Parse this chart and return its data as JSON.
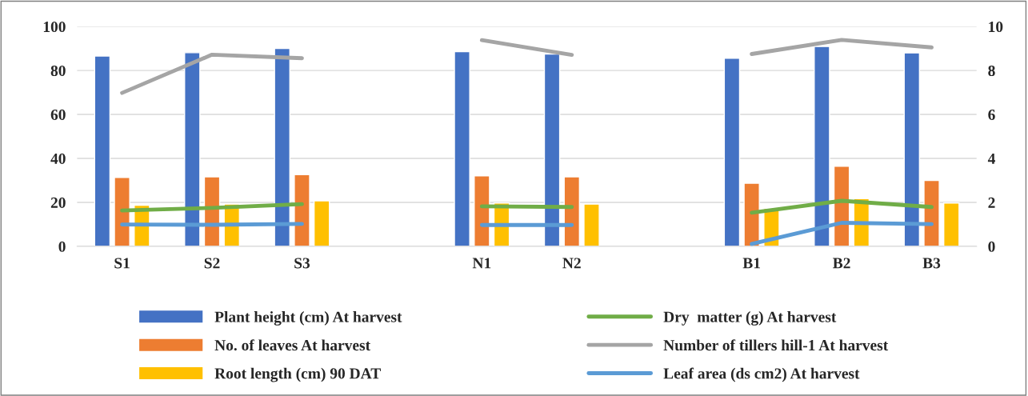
{
  "chart_data": {
    "type": "bar",
    "categories": [
      "S1",
      "S2",
      "S3",
      null,
      "N1",
      "N2",
      null,
      "B1",
      "B2",
      "B3"
    ],
    "series": [
      {
        "name": "Plant height (cm) At harvest",
        "color": "#4472c4",
        "values": [
          86.6,
          88.1,
          90.0,
          null,
          88.6,
          87.5,
          null,
          85.6,
          90.9,
          88.0
        ]
      },
      {
        "name": "No. of leaves At harvest",
        "color": "#ed7d31",
        "values": [
          31.3,
          31.6,
          32.6,
          null,
          32.1,
          31.6,
          null,
          28.7,
          36.4,
          30.0
        ]
      },
      {
        "name": "Root length (cm) 90 DAT",
        "color": "#ffc000",
        "values": [
          18.7,
          19.2,
          20.7,
          null,
          19.7,
          19.2,
          null,
          17.3,
          21.7,
          19.7
        ]
      },
      {
        "name": "Dry  matter (g) At harvest",
        "color": "#70ad47",
        "type": "line",
        "axis": "y2",
        "values": [
          1.63,
          1.75,
          1.92,
          null,
          1.82,
          1.79,
          null,
          1.53,
          2.07,
          1.79
        ]
      },
      {
        "name": "Number of tillers hill-1 At harvest",
        "color": "#a5a5a5",
        "type": "line",
        "axis": "y2",
        "values": [
          6.98,
          8.72,
          8.56,
          null,
          9.38,
          8.71,
          null,
          8.75,
          9.39,
          9.05
        ]
      },
      {
        "name": "Leaf area (ds cm2) At harvest",
        "color": "#5b9bd5",
        "type": "line",
        "axis": "y2",
        "values": [
          0.99,
          0.98,
          1.02,
          null,
          0.97,
          0.97,
          null,
          0.11,
          1.07,
          1.01
        ]
      }
    ],
    "ylim": [
      0,
      100
    ],
    "yticks": [
      0,
      20,
      40,
      60,
      80,
      100
    ],
    "y2lim": [
      0,
      10
    ],
    "y2ticks": [
      0,
      2,
      4,
      6,
      8,
      10
    ],
    "grid": "y",
    "legend": "bottom"
  }
}
